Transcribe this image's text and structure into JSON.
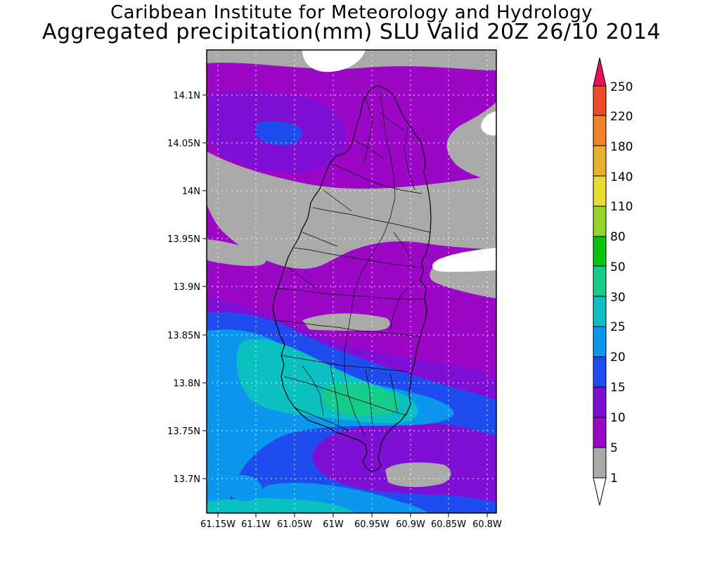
{
  "title": {
    "line1": "Caribbean Institute for Meteorology and Hydrology",
    "line2": "Aggregated precipitation(mm) SLU Valid 20Z 26/10 2014"
  },
  "axes": {
    "lat_ticks": [
      "14.1N",
      "14.05N",
      "14N",
      "13.95N",
      "13.9N",
      "13.85N",
      "13.8N",
      "13.75N",
      "13.7N"
    ],
    "lon_ticks": [
      "61.15W",
      "61.1W",
      "61.05W",
      "61W",
      "60.95W",
      "60.9W",
      "60.85W",
      "60.8W"
    ]
  },
  "colorbar": {
    "labels": [
      "1",
      "5",
      "10",
      "15",
      "20",
      "25",
      "30",
      "50",
      "80",
      "110",
      "140",
      "180",
      "220",
      "250"
    ],
    "colors": {
      "lt1": "#ffffff",
      "c1_5": "#aaaaaa",
      "c5_10": "#9b06c7",
      "c10_15": "#7f0fd4",
      "c15_20": "#1e4cee",
      "c20_25": "#0b97ee",
      "c25_30": "#0bc0c0",
      "c30_50": "#16cc8a",
      "c50_80": "#06c40e",
      "c80_110": "#94d52b",
      "c110_140": "#e6dc32",
      "c140_180": "#e6af2d",
      "c180_220": "#f0822a",
      "c220_250": "#f04a2a",
      "gt250": "#e8115a"
    }
  }
}
